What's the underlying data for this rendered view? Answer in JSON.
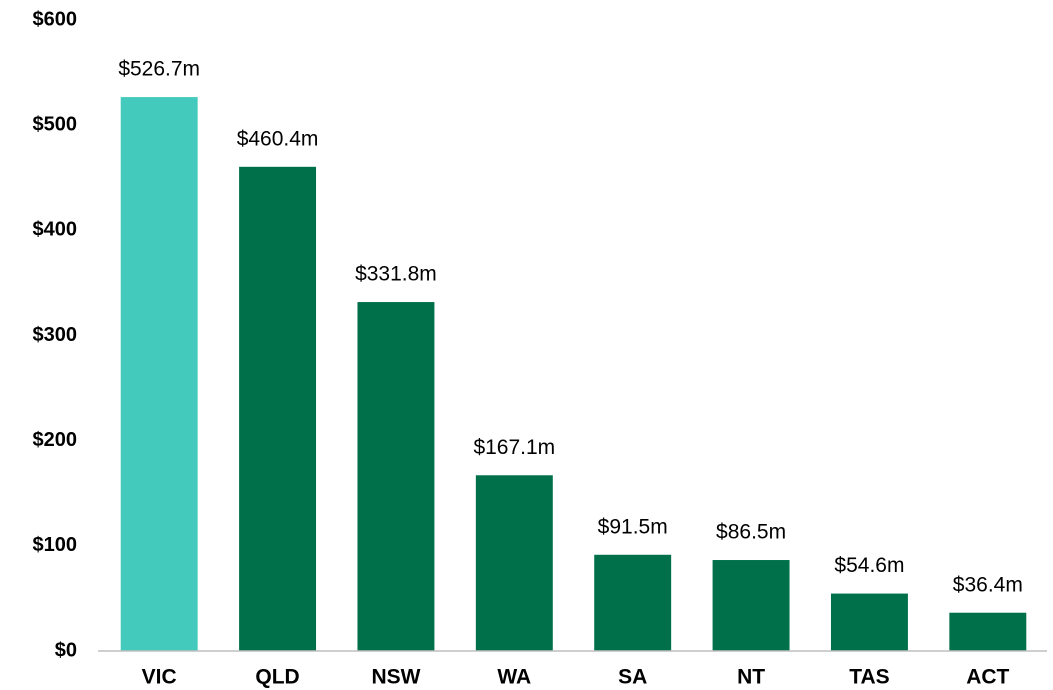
{
  "chart_data": {
    "type": "bar",
    "categories": [
      "VIC",
      "QLD",
      "NSW",
      "WA",
      "SA",
      "NT",
      "TAS",
      "ACT"
    ],
    "values": [
      526.7,
      460.4,
      331.8,
      167.1,
      91.5,
      86.5,
      54.6,
      36.4
    ],
    "value_labels": [
      "$526.7m",
      "$460.4m",
      "$331.8m",
      "$167.1m",
      "$91.5m",
      "$86.5m",
      "$54.6m",
      "$36.4m"
    ],
    "colors": [
      "#44c9bd",
      "#00704a",
      "#00704a",
      "#00704a",
      "#00704a",
      "#00704a",
      "#00704a",
      "#00704a"
    ],
    "ylim": [
      0,
      600
    ],
    "yticks": [
      {
        "value": 0,
        "label": "$0"
      },
      {
        "value": 100,
        "label": "$100"
      },
      {
        "value": 200,
        "label": "$200"
      },
      {
        "value": 300,
        "label": "$300"
      },
      {
        "value": 400,
        "label": "$400"
      },
      {
        "value": 500,
        "label": "$500"
      },
      {
        "value": 600,
        "label": "$600"
      }
    ],
    "grid": false
  }
}
